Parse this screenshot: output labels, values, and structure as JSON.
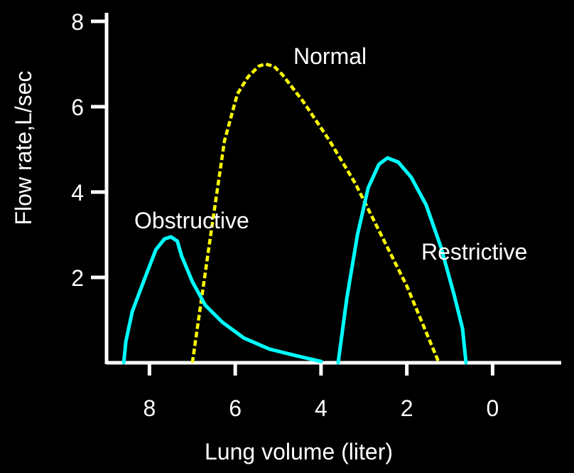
{
  "chart_data": {
    "type": "line",
    "title": "",
    "xlabel": "Lung volume (liter)",
    "ylabel": "Flow rate,L/sec",
    "x_reversed": true,
    "xlim": [
      9,
      -1.6
    ],
    "ylim": [
      0,
      8
    ],
    "x_ticks": [
      8,
      6,
      4,
      2,
      0
    ],
    "y_ticks": [
      2,
      4,
      6,
      8
    ],
    "grid": false,
    "legend": "none (curves labelled directly)",
    "background_color": "#000000",
    "axis_color": "#ffffff",
    "series": [
      {
        "name": "Normal",
        "color": "#ffff00",
        "style": "dashed",
        "points": [
          [
            7.0,
            0
          ],
          [
            6.6,
            2.8
          ],
          [
            6.25,
            5.2
          ],
          [
            5.95,
            6.3
          ],
          [
            5.7,
            6.7
          ],
          [
            5.45,
            6.95
          ],
          [
            5.3,
            7.0
          ],
          [
            5.1,
            6.95
          ],
          [
            4.9,
            6.75
          ],
          [
            4.4,
            6.1
          ],
          [
            3.8,
            5.2
          ],
          [
            3.2,
            4.2
          ],
          [
            2.6,
            3.0
          ],
          [
            2.0,
            1.8
          ],
          [
            1.25,
            0
          ]
        ]
      },
      {
        "name": "Obstructive",
        "color": "#00ffff",
        "style": "solid",
        "points": [
          [
            8.6,
            0
          ],
          [
            8.55,
            0.5
          ],
          [
            8.4,
            1.2
          ],
          [
            8.1,
            2.0
          ],
          [
            7.85,
            2.65
          ],
          [
            7.65,
            2.9
          ],
          [
            7.5,
            2.95
          ],
          [
            7.35,
            2.85
          ],
          [
            7.25,
            2.5
          ],
          [
            7.0,
            1.9
          ],
          [
            6.7,
            1.35
          ],
          [
            6.3,
            0.95
          ],
          [
            5.8,
            0.58
          ],
          [
            5.2,
            0.32
          ],
          [
            4.6,
            0.17
          ],
          [
            4.0,
            0.03
          ]
        ]
      },
      {
        "name": "Restrictive",
        "color": "#00ffff",
        "style": "solid",
        "points": [
          [
            3.6,
            0
          ],
          [
            3.4,
            1.5
          ],
          [
            3.15,
            3.0
          ],
          [
            2.9,
            4.1
          ],
          [
            2.65,
            4.65
          ],
          [
            2.45,
            4.8
          ],
          [
            2.2,
            4.7
          ],
          [
            1.9,
            4.35
          ],
          [
            1.55,
            3.7
          ],
          [
            1.2,
            2.7
          ],
          [
            0.9,
            1.6
          ],
          [
            0.7,
            0.8
          ],
          [
            0.62,
            0
          ]
        ]
      }
    ],
    "annotations": [
      "Normal",
      "Obstructive",
      "Restrictive"
    ]
  }
}
